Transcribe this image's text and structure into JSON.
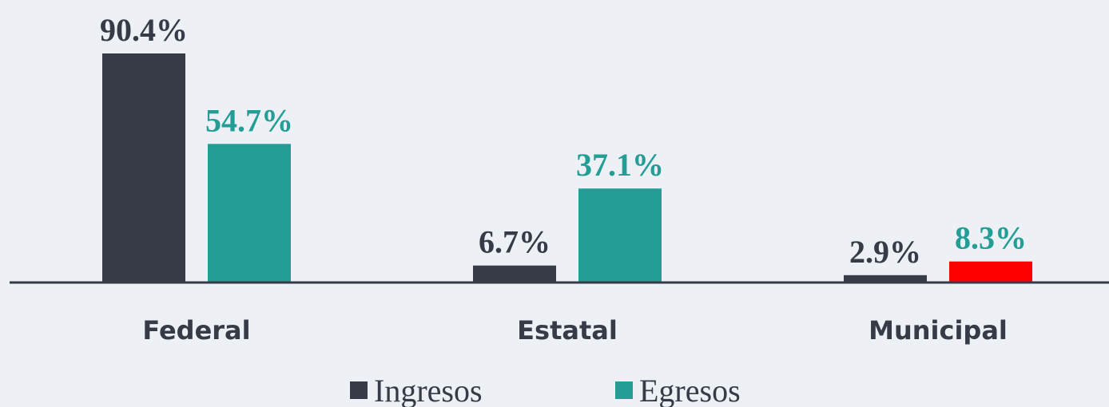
{
  "chart_data": {
    "type": "bar",
    "categories": [
      "Federal",
      "Estatal",
      "Municipal"
    ],
    "series": [
      {
        "name": "Ingresos",
        "color": "#363b47",
        "values": [
          90.4,
          6.7,
          2.9
        ],
        "value_labels": [
          "90.4%",
          "6.7%",
          "2.9%"
        ]
      },
      {
        "name": "Egresos",
        "color": "#229e96",
        "values": [
          54.7,
          37.1,
          8.3
        ],
        "value_labels": [
          "54.7%",
          "37.1%",
          "8.3%"
        ],
        "colors": [
          "#229e96",
          "#229e96",
          "#ff0000"
        ]
      }
    ],
    "ylim": [
      0,
      100
    ],
    "legend": "bottom"
  }
}
